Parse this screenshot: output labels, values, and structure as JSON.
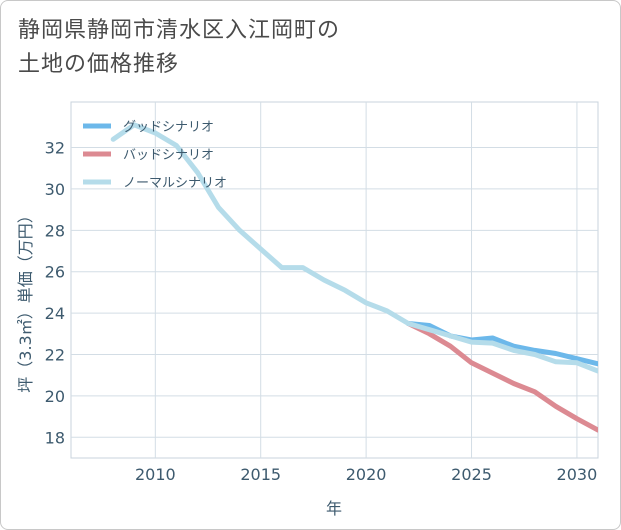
{
  "title_lines": [
    "静岡県静岡市清水区入江岡町の",
    "土地の価格推移"
  ],
  "chart_data": {
    "type": "line",
    "xlabel": "年",
    "ylabel": "坪（3.3㎡）単価（万円）",
    "xlim": [
      2006,
      2031
    ],
    "ylim": [
      17,
      34.2
    ],
    "xticks": [
      2010,
      2015,
      2020,
      2025,
      2030
    ],
    "yticks": [
      18,
      20,
      22,
      24,
      26,
      28,
      30,
      32
    ],
    "legend_position": "top-left",
    "series": [
      {
        "name": "グッドシナリオ",
        "color": "#6cb8ea",
        "x": [
          2022,
          2023,
          2024,
          2025,
          2026,
          2027,
          2028,
          2029,
          2030,
          2031
        ],
        "y": [
          23.5,
          23.4,
          22.9,
          22.7,
          22.8,
          22.4,
          22.2,
          22.05,
          21.8,
          21.55
        ]
      },
      {
        "name": "バッドシナリオ",
        "color": "#dc8a92",
        "x": [
          2022,
          2023,
          2024,
          2025,
          2026,
          2027,
          2028,
          2029,
          2030,
          2031
        ],
        "y": [
          23.5,
          23.0,
          22.4,
          21.6,
          21.1,
          20.6,
          20.2,
          19.5,
          18.9,
          18.35
        ]
      },
      {
        "name": "ノーマルシナリオ",
        "color": "#b5dcea",
        "x": [
          2008,
          2009,
          2010,
          2011,
          2012,
          2013,
          2014,
          2015,
          2016,
          2017,
          2018,
          2019,
          2020,
          2021,
          2022,
          2023,
          2024,
          2025,
          2026,
          2027,
          2028,
          2029,
          2030,
          2031
        ],
        "y": [
          32.4,
          33.1,
          32.7,
          32.1,
          30.8,
          29.1,
          28.0,
          27.1,
          26.2,
          26.2,
          25.6,
          25.1,
          24.5,
          24.1,
          23.5,
          23.2,
          22.9,
          22.6,
          22.55,
          22.2,
          22.0,
          21.65,
          21.6,
          21.2
        ]
      }
    ]
  }
}
